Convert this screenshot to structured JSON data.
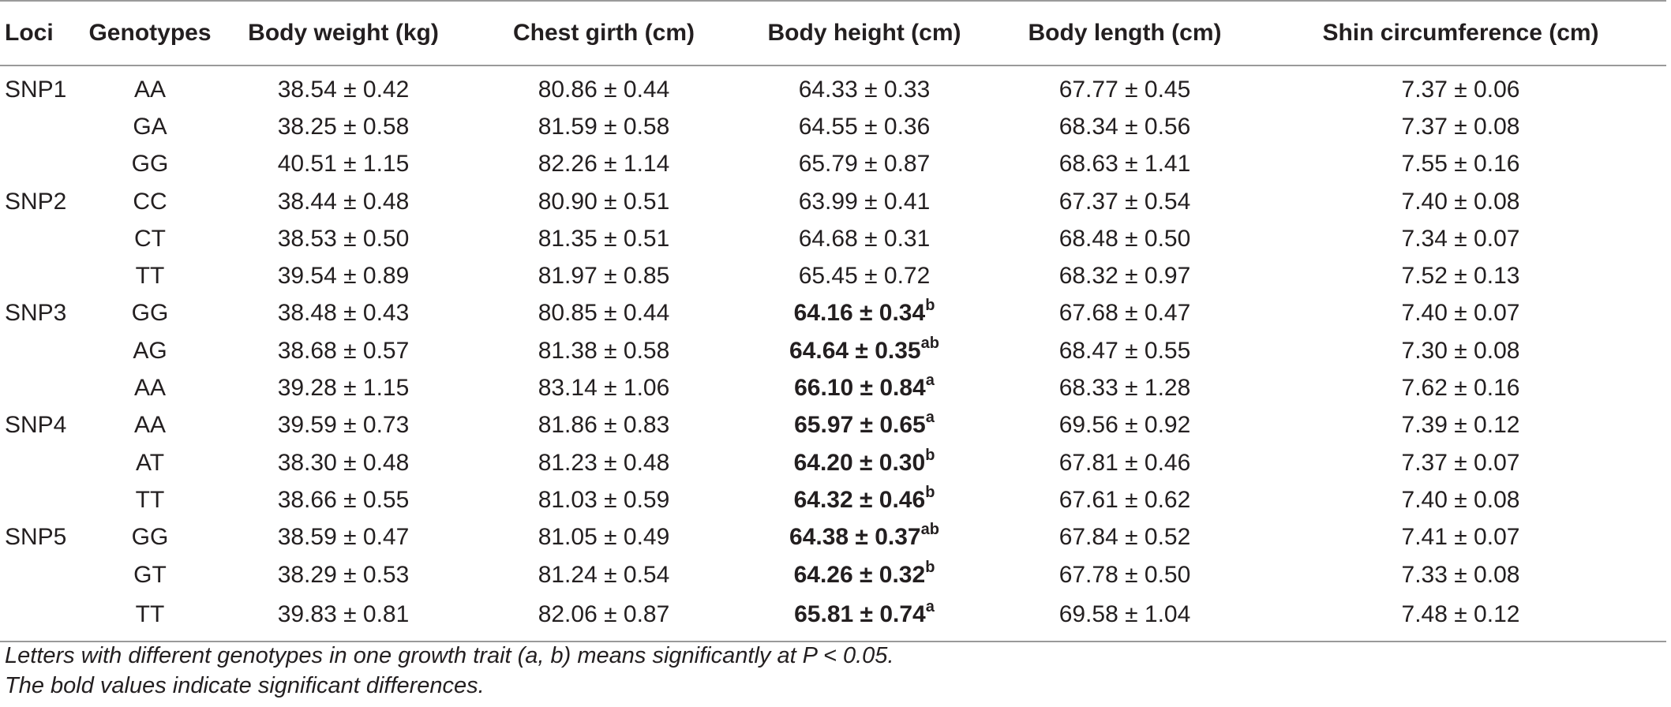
{
  "table": {
    "headers": [
      "Loci",
      "Genotypes",
      "Body weight (kg)",
      "Chest girth (cm)",
      "Body height (cm)",
      "Body length (cm)",
      "Shin circumference (cm)"
    ],
    "rows": [
      {
        "locus": "SNP1",
        "genotype": "AA",
        "body_weight": "38.54 ± 0.42",
        "chest_girth": "80.86 ± 0.44",
        "body_height": "64.33 ± 0.33",
        "body_height_sup": "",
        "body_height_bold": false,
        "body_length": "67.77 ± 0.45",
        "shin": "7.37 ± 0.06"
      },
      {
        "locus": "",
        "genotype": "GA",
        "body_weight": "38.25 ± 0.58",
        "chest_girth": "81.59 ± 0.58",
        "body_height": "64.55 ± 0.36",
        "body_height_sup": "",
        "body_height_bold": false,
        "body_length": "68.34 ± 0.56",
        "shin": "7.37 ± 0.08"
      },
      {
        "locus": "",
        "genotype": "GG",
        "body_weight": "40.51 ± 1.15",
        "chest_girth": "82.26 ± 1.14",
        "body_height": "65.79 ± 0.87",
        "body_height_sup": "",
        "body_height_bold": false,
        "body_length": "68.63 ± 1.41",
        "shin": "7.55 ± 0.16"
      },
      {
        "locus": "SNP2",
        "genotype": "CC",
        "body_weight": "38.44 ± 0.48",
        "chest_girth": "80.90 ± 0.51",
        "body_height": "63.99 ± 0.41",
        "body_height_sup": "",
        "body_height_bold": false,
        "body_length": "67.37 ± 0.54",
        "shin": "7.40 ± 0.08"
      },
      {
        "locus": "",
        "genotype": "CT",
        "body_weight": "38.53 ± 0.50",
        "chest_girth": "81.35 ± 0.51",
        "body_height": "64.68 ± 0.31",
        "body_height_sup": "",
        "body_height_bold": false,
        "body_length": "68.48 ± 0.50",
        "shin": "7.34 ± 0.07"
      },
      {
        "locus": "",
        "genotype": "TT",
        "body_weight": "39.54 ± 0.89",
        "chest_girth": "81.97 ± 0.85",
        "body_height": "65.45 ± 0.72",
        "body_height_sup": "",
        "body_height_bold": false,
        "body_length": "68.32 ± 0.97",
        "shin": "7.52 ± 0.13"
      },
      {
        "locus": "SNP3",
        "genotype": "GG",
        "body_weight": "38.48 ± 0.43",
        "chest_girth": "80.85 ± 0.44",
        "body_height": "64.16 ± 0.34",
        "body_height_sup": "b",
        "body_height_bold": true,
        "body_length": "67.68 ± 0.47",
        "shin": "7.40 ± 0.07"
      },
      {
        "locus": "",
        "genotype": "AG",
        "body_weight": "38.68 ± 0.57",
        "chest_girth": "81.38 ± 0.58",
        "body_height": "64.64 ± 0.35",
        "body_height_sup": "ab",
        "body_height_bold": true,
        "body_length": "68.47 ± 0.55",
        "shin": "7.30 ± 0.08"
      },
      {
        "locus": "",
        "genotype": "AA",
        "body_weight": "39.28 ± 1.15",
        "chest_girth": "83.14 ± 1.06",
        "body_height": "66.10 ± 0.84",
        "body_height_sup": "a",
        "body_height_bold": true,
        "body_length": "68.33 ± 1.28",
        "shin": "7.62 ± 0.16"
      },
      {
        "locus": "SNP4",
        "genotype": "AA",
        "body_weight": "39.59 ± 0.73",
        "chest_girth": "81.86 ± 0.83",
        "body_height": "65.97 ± 0.65",
        "body_height_sup": "a",
        "body_height_bold": true,
        "body_length": "69.56 ± 0.92",
        "shin": "7.39 ± 0.12"
      },
      {
        "locus": "",
        "genotype": "AT",
        "body_weight": "38.30 ± 0.48",
        "chest_girth": "81.23 ± 0.48",
        "body_height": "64.20 ± 0.30",
        "body_height_sup": "b",
        "body_height_bold": true,
        "body_length": "67.81 ± 0.46",
        "shin": "7.37 ± 0.07"
      },
      {
        "locus": "",
        "genotype": "TT",
        "body_weight": "38.66 ± 0.55",
        "chest_girth": "81.03 ± 0.59",
        "body_height": "64.32 ± 0.46",
        "body_height_sup": "b",
        "body_height_bold": true,
        "body_length": "67.61 ± 0.62",
        "shin": "7.40 ± 0.08"
      },
      {
        "locus": "SNP5",
        "genotype": "GG",
        "body_weight": "38.59 ± 0.47",
        "chest_girth": "81.05 ± 0.49",
        "body_height": "64.38 ± 0.37",
        "body_height_sup": "ab",
        "body_height_bold": true,
        "body_length": "67.84 ± 0.52",
        "shin": "7.41 ± 0.07"
      },
      {
        "locus": "",
        "genotype": "GT",
        "body_weight": "38.29 ± 0.53",
        "chest_girth": "81.24 ± 0.54",
        "body_height": "64.26 ± 0.32",
        "body_height_sup": "b",
        "body_height_bold": true,
        "body_length": "67.78 ± 0.50",
        "shin": "7.33 ± 0.08"
      },
      {
        "locus": "",
        "genotype": "TT",
        "body_weight": "39.83 ± 0.81",
        "chest_girth": "82.06 ± 0.87",
        "body_height": "65.81 ± 0.74",
        "body_height_sup": "a",
        "body_height_bold": true,
        "body_length": "69.58 ± 1.04",
        "shin": "7.48 ± 0.12"
      }
    ]
  },
  "notes": [
    "Letters with different genotypes in one growth trait (a, b) means significantly at P < 0.05.",
    "The bold values indicate significant differences."
  ]
}
